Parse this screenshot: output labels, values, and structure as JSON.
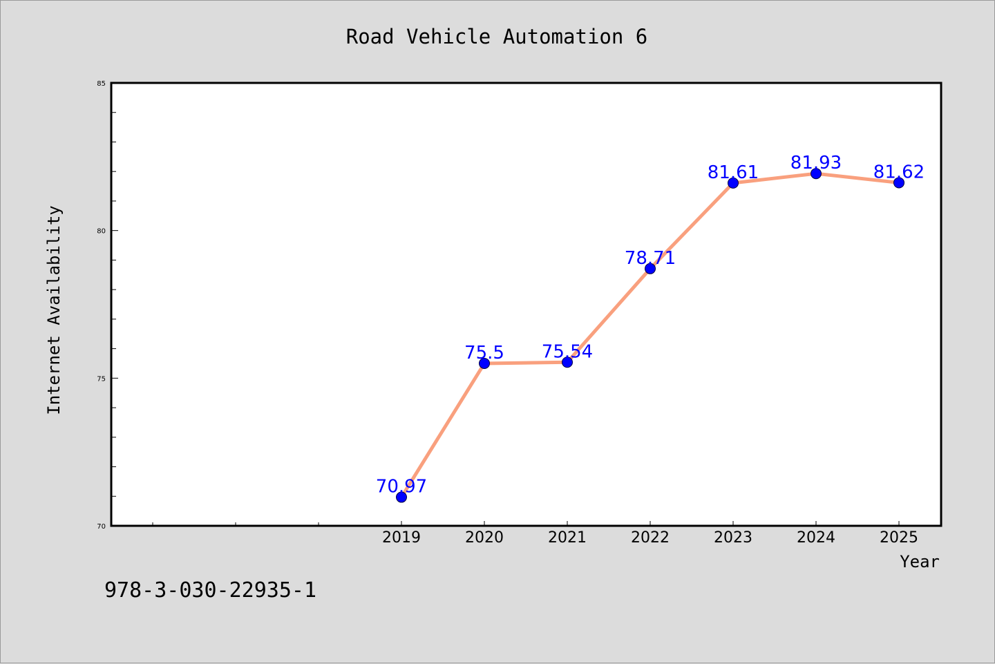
{
  "chart_data": {
    "type": "line",
    "title": "Road Vehicle Automation 6",
    "xlabel": "Year",
    "ylabel": "Internet Availability",
    "categories": [
      "2019",
      "2020",
      "2021",
      "2022",
      "2023",
      "2024",
      "2025"
    ],
    "values": [
      70.97,
      75.5,
      75.54,
      78.71,
      81.61,
      81.93,
      81.62
    ],
    "data_labels": [
      "70.97",
      "75.5",
      "75.54",
      "78.71",
      "81.61",
      "81.93",
      "81.62"
    ],
    "yticks": [
      "70",
      "75",
      "80",
      "85"
    ],
    "ylim": [
      70,
      85
    ],
    "grid": false,
    "legend": "none",
    "colors": {
      "line": "#f9a07e",
      "marker": "#0000ff",
      "label": "#0000ff"
    }
  },
  "footer": {
    "isbn": "978-3-030-22935-1"
  }
}
